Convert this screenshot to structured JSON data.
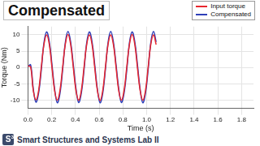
{
  "chart_data": {
    "type": "line",
    "title": "Compensated",
    "x_label": "Time (s)",
    "y_label": "Torque (Nm)",
    "x": [
      0,
      0.0225,
      0.045,
      0.0675,
      0.09,
      0.1125,
      0.135,
      0.1575,
      0.18,
      0.2025,
      0.225,
      0.2475,
      0.27,
      0.2925,
      0.315,
      0.3375,
      0.36,
      0.3825,
      0.405,
      0.4275,
      0.45,
      0.4725,
      0.495,
      0.5175,
      0.54,
      0.5625,
      0.585,
      0.6075,
      0.63,
      0.6525,
      0.675,
      0.6975,
      0.72,
      0.7425,
      0.765,
      0.7875,
      0.81,
      0.8325,
      0.855,
      0.8775,
      0.9,
      0.9225,
      0.945,
      0.9675,
      0.99,
      1.0125,
      1.035,
      1.0575,
      1.08
    ],
    "series": [
      {
        "name": "Input torque",
        "color": "#e8262d",
        "values": [
          0.5,
          0.2,
          -7.0,
          -9.9,
          -7.1,
          0.1,
          7.0,
          10.0,
          7.1,
          0.0,
          -7.1,
          -10.0,
          -7.0,
          0.1,
          7.1,
          10.1,
          7.0,
          -0.1,
          -7.1,
          -10.0,
          -7.0,
          0.0,
          7.0,
          10.0,
          7.1,
          0.0,
          -7.0,
          -10.1,
          -7.1,
          0.0,
          7.1,
          10.0,
          7.0,
          0.0,
          -7.1,
          -10.0,
          -7.0,
          0.1,
          7.0,
          10.1,
          7.1,
          -0.1,
          -7.0,
          -10.0,
          -7.1,
          0.0,
          7.1,
          10.0,
          7.0
        ]
      },
      {
        "name": "Compensated",
        "color": "#2e3fb8",
        "values": [
          0.3,
          0.8,
          -6.5,
          -10.6,
          -7.8,
          -0.8,
          7.5,
          10.9,
          7.9,
          0.9,
          -6.6,
          -10.8,
          -7.9,
          -0.7,
          7.6,
          11.0,
          7.8,
          0.8,
          -6.5,
          -10.7,
          -7.8,
          -0.8,
          7.5,
          10.9,
          7.9,
          0.9,
          -6.6,
          -10.8,
          -7.9,
          -0.7,
          7.6,
          11.0,
          7.8,
          0.8,
          -6.5,
          -10.7,
          -7.8,
          -0.8,
          7.5,
          10.9,
          7.9,
          0.9,
          -6.6,
          -10.8,
          -7.9,
          -0.7,
          7.6,
          11.0,
          7.8
        ]
      }
    ],
    "xlim": [
      0,
      1.9
    ],
    "xticks": [
      {
        "value": 0,
        "label": "0.0"
      },
      0.2,
      0.4,
      0.6,
      0.8,
      {
        "value": 1,
        "label": "1.0"
      },
      1.2,
      1.4,
      1.6,
      1.8
    ],
    "ylim": [
      -12.5,
      12.5
    ],
    "yticks": [
      -10,
      -5,
      0,
      5,
      10
    ],
    "grid": true,
    "legend": "top-right"
  },
  "footer": {
    "text": "Smart Structures and Systems Lab II",
    "logo": "S",
    "logo_superscript": "3"
  }
}
